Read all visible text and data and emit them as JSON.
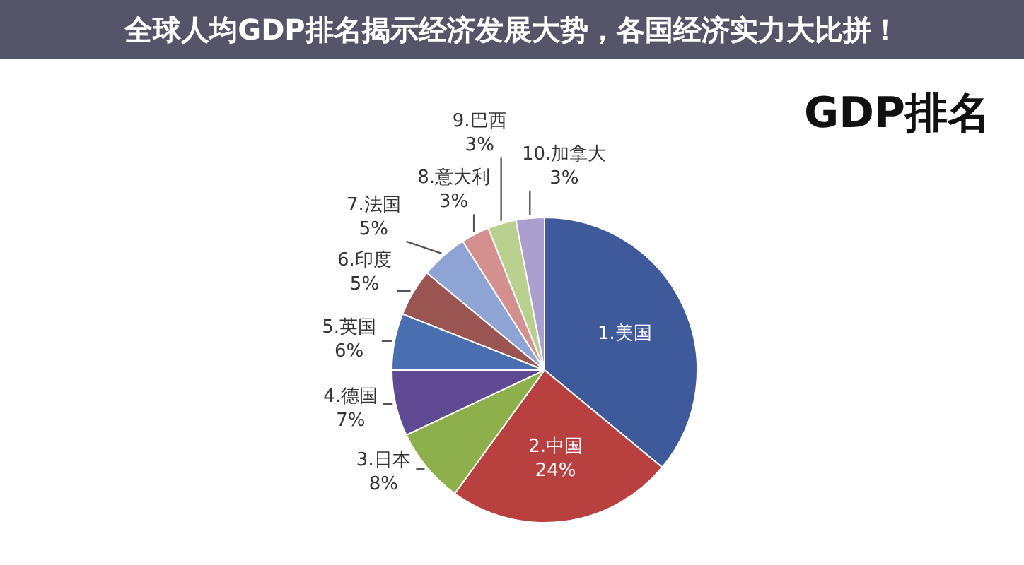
{
  "chart_data": {
    "type": "pie",
    "title": "全球人均GDP排名揭示经济发展大势，各国经济实力大比拼！",
    "subtitle": "GDP排名",
    "categories": [
      "1.美国",
      "2.中国",
      "3.日本",
      "4.德国",
      "5.英国",
      "6.印度",
      "7.法国",
      "8.意大利",
      "9.巴西",
      "10.加拿大"
    ],
    "values": [
      36,
      24,
      8,
      7,
      6,
      5,
      5,
      3,
      3,
      3
    ],
    "colors": [
      "#3f5a9a",
      "#b8413f",
      "#8db04c",
      "#5d4a92",
      "#4a6fb0",
      "#9a5552",
      "#8ea4d4",
      "#d4908e",
      "#b9d08e",
      "#ab9fcf"
    ],
    "value_labels": [
      null,
      "24%",
      "8%",
      "7%",
      "6%",
      "5%",
      "5%",
      "3%",
      "3%",
      "3%"
    ]
  }
}
